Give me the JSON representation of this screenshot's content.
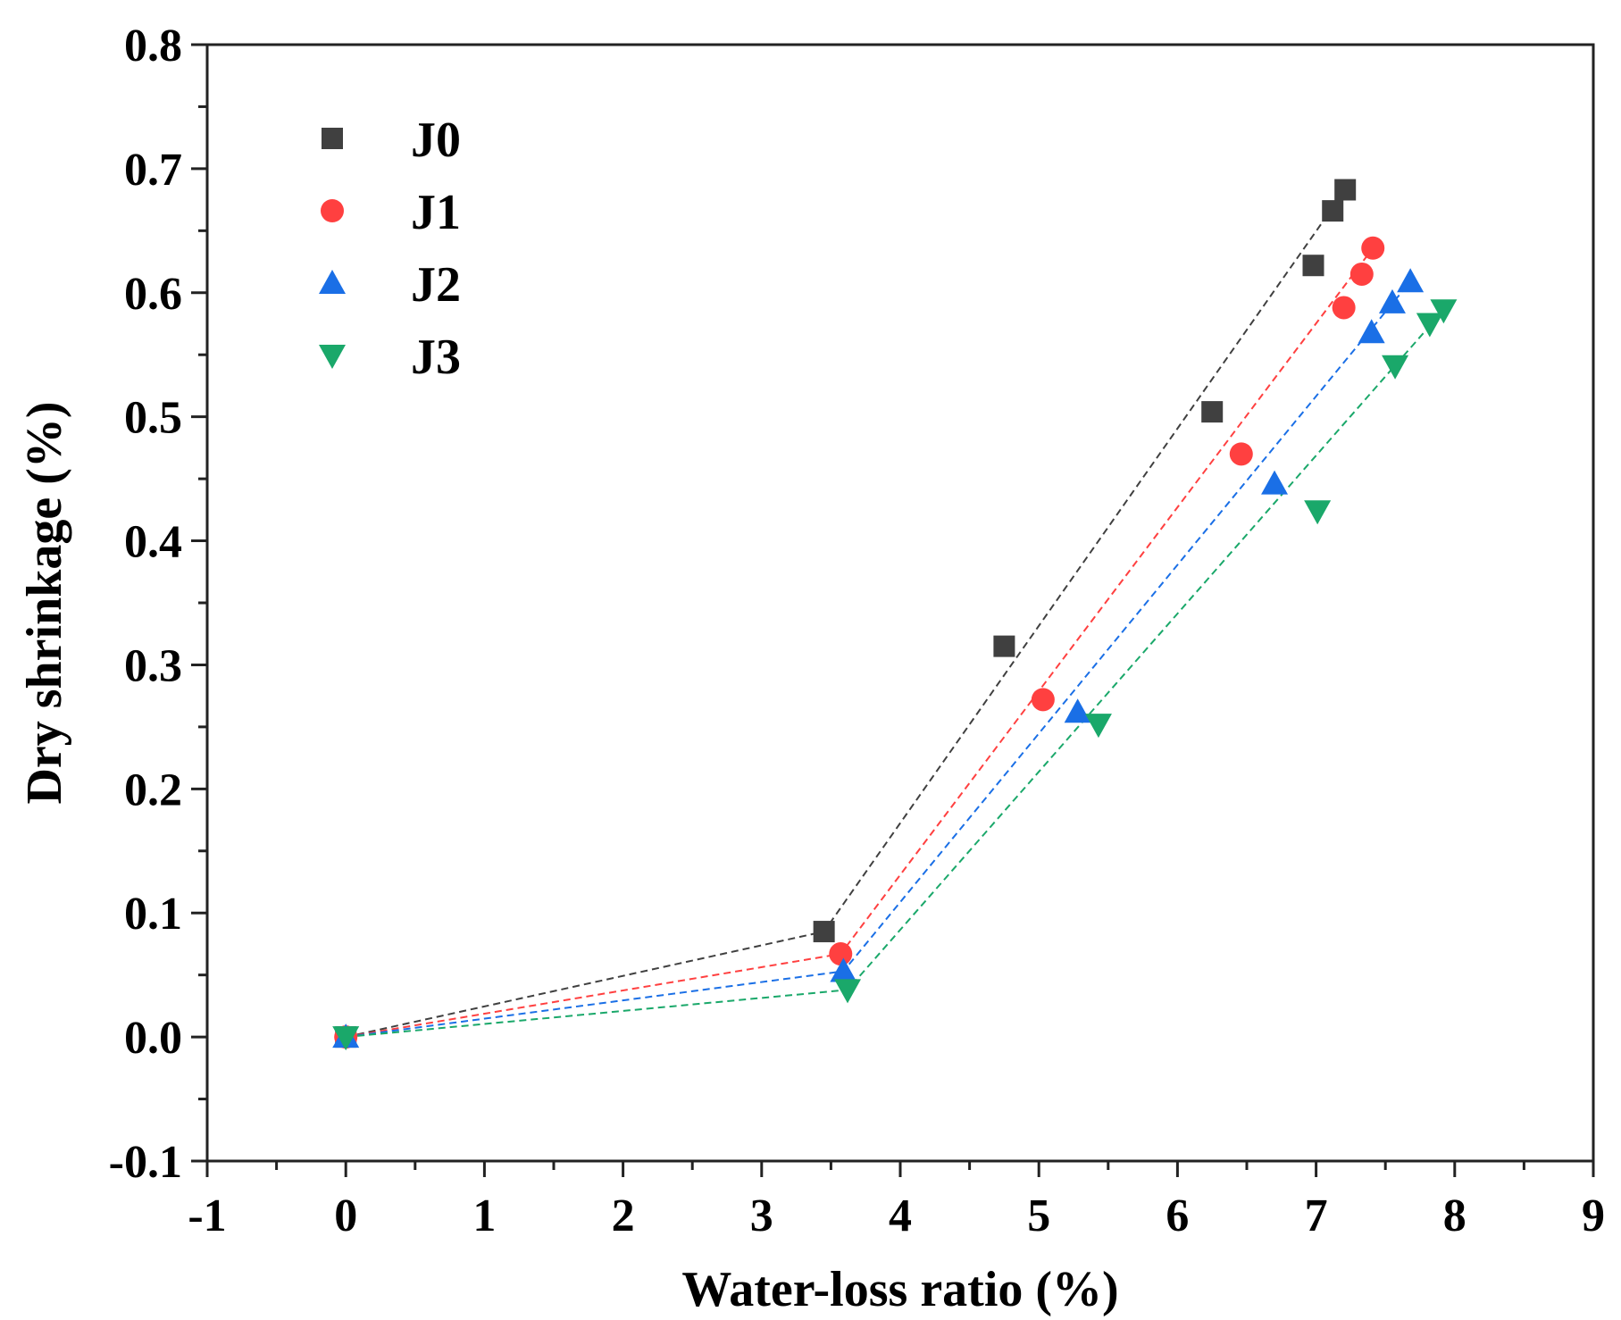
{
  "chart_data": {
    "type": "scatter",
    "xlabel": "Water-loss ratio (%)",
    "ylabel": "Dry shrinkage (%)",
    "xlim": [
      -1,
      9
    ],
    "ylim": [
      -0.1,
      0.8
    ],
    "x_ticks": [
      "-1",
      "0",
      "1",
      "2",
      "3",
      "4",
      "5",
      "6",
      "7",
      "8",
      "9"
    ],
    "y_ticks": [
      "-0.1",
      "0.0",
      "0.1",
      "0.2",
      "0.3",
      "0.4",
      "0.5",
      "0.6",
      "0.7",
      "0.8"
    ],
    "grid": false,
    "legend_position": "top-left",
    "series": [
      {
        "name": "J0",
        "marker": "square",
        "color": "#404040",
        "points": [
          [
            0,
            0.0
          ],
          [
            3.45,
            0.085
          ],
          [
            4.75,
            0.315
          ],
          [
            6.25,
            0.504
          ],
          [
            6.98,
            0.622
          ],
          [
            7.12,
            0.666
          ],
          [
            7.21,
            0.683
          ]
        ],
        "fit": [
          [
            0,
            0.0
          ],
          [
            3.45,
            0.085
          ],
          [
            7.21,
            0.683
          ]
        ]
      },
      {
        "name": "J1",
        "marker": "circle",
        "color": "#ff4040",
        "points": [
          [
            0,
            0.0
          ],
          [
            3.57,
            0.067
          ],
          [
            5.03,
            0.272
          ],
          [
            6.46,
            0.47
          ],
          [
            7.2,
            0.588
          ],
          [
            7.33,
            0.615
          ],
          [
            7.41,
            0.636
          ]
        ],
        "fit": [
          [
            0,
            0.0
          ],
          [
            3.57,
            0.067
          ],
          [
            7.41,
            0.636
          ]
        ]
      },
      {
        "name": "J2",
        "marker": "triangle-up",
        "color": "#1a6fe6",
        "points": [
          [
            0,
            0.0
          ],
          [
            3.59,
            0.053
          ],
          [
            5.28,
            0.262
          ],
          [
            6.7,
            0.446
          ],
          [
            7.4,
            0.568
          ],
          [
            7.55,
            0.592
          ],
          [
            7.68,
            0.609
          ]
        ],
        "fit": [
          [
            0,
            0.0
          ],
          [
            3.59,
            0.053
          ],
          [
            7.68,
            0.609
          ]
        ]
      },
      {
        "name": "J3",
        "marker": "triangle-down",
        "color": "#1aa86a",
        "points": [
          [
            0,
            0.0
          ],
          [
            3.62,
            0.038
          ],
          [
            5.43,
            0.252
          ],
          [
            7.01,
            0.424
          ],
          [
            7.57,
            0.541
          ],
          [
            7.82,
            0.575
          ],
          [
            7.92,
            0.586
          ]
        ],
        "fit": [
          [
            0,
            0.0
          ],
          [
            3.62,
            0.038
          ],
          [
            7.92,
            0.586
          ]
        ]
      }
    ]
  }
}
